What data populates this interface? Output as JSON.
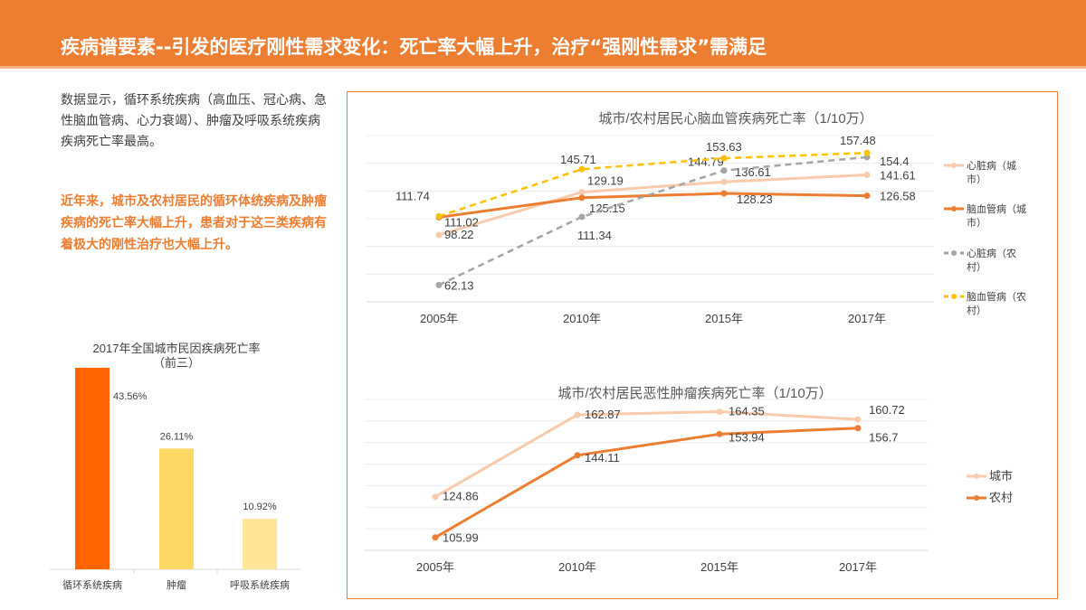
{
  "header": {
    "title": "疾病谱要素--引发的医疗刚性需求变化：死亡率大幅上升，治疗“强刚性需求”需满足"
  },
  "left": {
    "intro": "数据显示，循环系统疾病（高血压、冠心病、急性脑血管病、心力衰竭）、肿瘤及呼吸系统疾病疾病死亡率最高。",
    "highlight": "近年来，城市及农村居民的循环体统疾病及肿瘤疾病的死亡率大幅上升，患者对于这三类疾病有着极大的刚性治疗也大幅上升。"
  },
  "chart_data": [
    {
      "type": "bar",
      "title": [
        "2017年全国城市民因疾病死亡率",
        "（前三）"
      ],
      "categories": [
        "循环系统疾病",
        "肿瘤",
        "呼吸系统疾病"
      ],
      "values": [
        43.56,
        26.11,
        10.92
      ],
      "labels": [
        "43.56%",
        "26.11%",
        "10.92%"
      ],
      "colors": [
        "#ff6600",
        "#ffd966",
        "#ffe699"
      ],
      "ylim": [
        0,
        45
      ],
      "grid": false
    },
    {
      "type": "line",
      "title": "城市/农村居民心脑血管疾病死亡率（1/10万）",
      "categories": [
        "2005年",
        "2010年",
        "2015年",
        "2017年"
      ],
      "ylim": [
        50,
        170
      ],
      "grid": true,
      "legend": "right",
      "series": [
        {
          "name": "心脏病（城市）",
          "values": [
            98.22,
            129.19,
            136.61,
            141.61
          ],
          "labels": [
            "98.22",
            "129.19",
            "136.61",
            "141.61"
          ],
          "color": "#f8cbad",
          "dash": false
        },
        {
          "name": "脑血管病（城市）",
          "values": [
            111.02,
            125.15,
            128.23,
            126.58
          ],
          "labels": [
            "111.02",
            "125.15",
            "128.23",
            "126.58"
          ],
          "color": "#ed7d31",
          "dash": false
        },
        {
          "name": "心脏病（农村）",
          "values": [
            62.13,
            111.34,
            144.79,
            154.4
          ],
          "labels": [
            "62.13",
            "111.34",
            "144.79",
            "154.4"
          ],
          "color": "#a5a5a5",
          "dash": true
        },
        {
          "name": "脑血管病（农村）",
          "values": [
            111.74,
            145.71,
            153.63,
            157.48
          ],
          "labels": [
            "111.74",
            "145.71",
            "153.63",
            "157.48"
          ],
          "color": "#ffc000",
          "dash": true
        }
      ]
    },
    {
      "type": "line",
      "title": "城市/农村居民恶性肿瘤疾病死亡率（1/10万）",
      "categories": [
        "2005年",
        "2010年",
        "2015年",
        "2017年"
      ],
      "ylim": [
        100,
        170
      ],
      "grid": true,
      "legend": "right",
      "series": [
        {
          "name": "城市",
          "values": [
            124.86,
            162.87,
            164.35,
            160.72
          ],
          "labels": [
            "124.86",
            "162.87",
            "164.35",
            "160.72"
          ],
          "color": "#f8cbad",
          "dash": false
        },
        {
          "name": "农村",
          "values": [
            105.99,
            144.11,
            153.94,
            156.7
          ],
          "labels": [
            "105.99",
            "144.11",
            "153.94",
            "156.7"
          ],
          "color": "#ed7d31",
          "dash": false
        }
      ]
    }
  ]
}
